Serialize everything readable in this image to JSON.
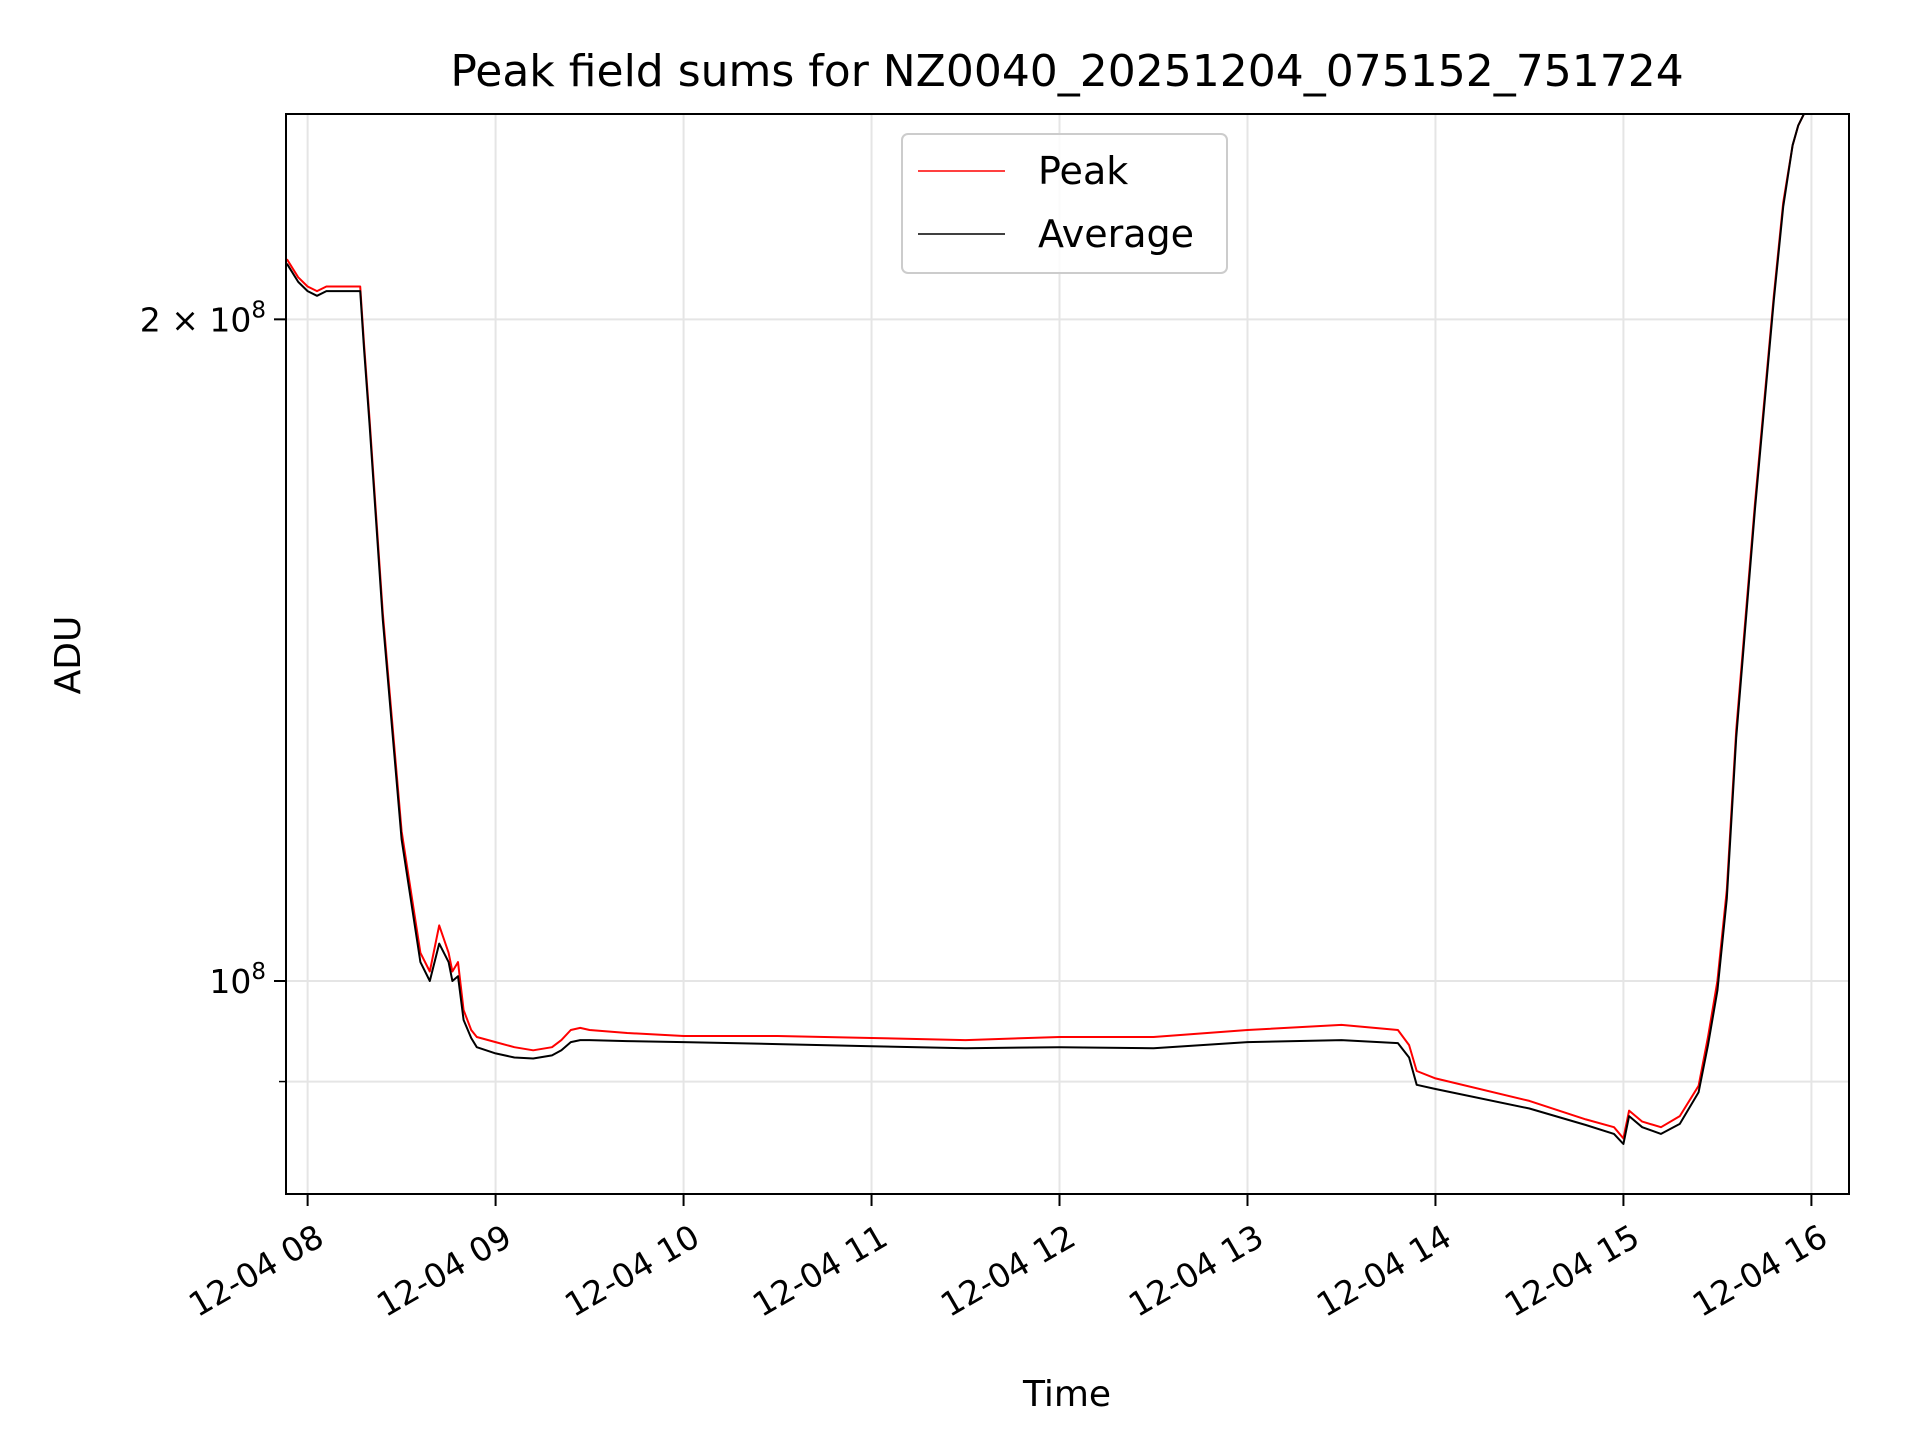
{
  "chart_data": {
    "type": "line",
    "title": "Peak field sums for NZ0040_20251204_075152_751724",
    "xlabel": "Time",
    "ylabel": "ADU",
    "x_unit": "hour of 2025-12-04",
    "xlim": [
      7.885,
      16.2
    ],
    "ylim": [
      80000000,
      248000000
    ],
    "yscale": "log",
    "grid": true,
    "legend_placement": "upper center",
    "x_ticks": [
      8,
      9,
      10,
      11,
      12,
      13,
      14,
      15,
      16
    ],
    "x_tick_labels": [
      "12-04 08",
      "12-04 09",
      "12-04 10",
      "12-04 11",
      "12-04 12",
      "12-04 13",
      "12-04 14",
      "12-04 15",
      "12-04 16"
    ],
    "y_ticks": [
      {
        "value": 200000000,
        "mantissa": "2",
        "times": "×",
        "base": "10",
        "exp": "8"
      },
      {
        "value": 100000000,
        "mantissa": "",
        "times": "",
        "base": "10",
        "exp": "8"
      }
    ],
    "y_minor_ticks": [
      90000000
    ],
    "series": [
      {
        "name": "Peak",
        "color": "#ff0000",
        "x": [
          7.89,
          7.95,
          8.0,
          8.05,
          8.1,
          8.2,
          8.28,
          8.3,
          8.33,
          8.4,
          8.5,
          8.6,
          8.65,
          8.7,
          8.75,
          8.77,
          8.8,
          8.83,
          8.87,
          8.9,
          9.0,
          9.1,
          9.2,
          9.3,
          9.35,
          9.4,
          9.45,
          9.5,
          9.7,
          10.0,
          10.5,
          11.0,
          11.5,
          12.0,
          12.5,
          13.0,
          13.5,
          13.8,
          13.86,
          13.9,
          14.0,
          14.5,
          14.8,
          14.95,
          15.0,
          15.03,
          15.1,
          15.2,
          15.3,
          15.4,
          15.45,
          15.5,
          15.55,
          15.6,
          15.7,
          15.8,
          15.85,
          15.9,
          15.93,
          15.96,
          16.0,
          16.2
        ],
        "y": [
          213000000,
          209000000,
          207000000,
          206000000,
          207000000,
          207000000,
          207000000,
          195000000,
          180000000,
          147000000,
          117000000,
          103000000,
          101000000,
          106000000,
          103000000,
          101000000,
          102000000,
          97000000,
          95000000,
          94300000,
          93800000,
          93300000,
          93000000,
          93300000,
          94000000,
          95000000,
          95200000,
          95000000,
          94700000,
          94400000,
          94400000,
          94200000,
          94000000,
          94300000,
          94300000,
          95000000,
          95500000,
          95000000,
          93500000,
          91000000,
          90300000,
          88200000,
          86500000,
          85800000,
          84800000,
          87300000,
          86300000,
          85800000,
          86800000,
          89600000,
          94300000,
          100000000,
          110000000,
          130000000,
          165000000,
          205000000,
          226000000,
          240000000,
          245000000,
          248000000,
          248000000,
          248000000
        ]
      },
      {
        "name": "Average",
        "color": "#000000",
        "x": [
          7.89,
          7.95,
          8.0,
          8.05,
          8.1,
          8.2,
          8.28,
          8.3,
          8.33,
          8.4,
          8.5,
          8.6,
          8.65,
          8.7,
          8.75,
          8.77,
          8.8,
          8.83,
          8.87,
          8.9,
          9.0,
          9.1,
          9.2,
          9.3,
          9.35,
          9.4,
          9.45,
          9.5,
          9.7,
          10.0,
          10.5,
          11.0,
          11.5,
          12.0,
          12.5,
          13.0,
          13.5,
          13.8,
          13.86,
          13.9,
          14.0,
          14.5,
          14.8,
          14.95,
          15.0,
          15.03,
          15.1,
          15.2,
          15.3,
          15.4,
          15.45,
          15.5,
          15.55,
          15.6,
          15.7,
          15.8,
          15.85,
          15.9,
          15.93,
          15.96,
          16.0,
          16.2
        ],
        "y": [
          212000000,
          208000000,
          206000000,
          205000000,
          206000000,
          206000000,
          206000000,
          194000000,
          179000000,
          146000000,
          116000000,
          102000000,
          100000000,
          104000000,
          102000000,
          100000000,
          100500000,
          96000000,
          94200000,
          93300000,
          92700000,
          92300000,
          92200000,
          92500000,
          93000000,
          93800000,
          94000000,
          94000000,
          93900000,
          93800000,
          93600000,
          93400000,
          93200000,
          93300000,
          93200000,
          93800000,
          94000000,
          93700000,
          92300000,
          89700000,
          89300000,
          87500000,
          86000000,
          85200000,
          84300000,
          86800000,
          85800000,
          85200000,
          86100000,
          89000000,
          93500000,
          99000000,
          109000000,
          129000000,
          164000000,
          204000000,
          225000000,
          240000000,
          245000000,
          248000000,
          248000000,
          248000000
        ]
      }
    ]
  }
}
